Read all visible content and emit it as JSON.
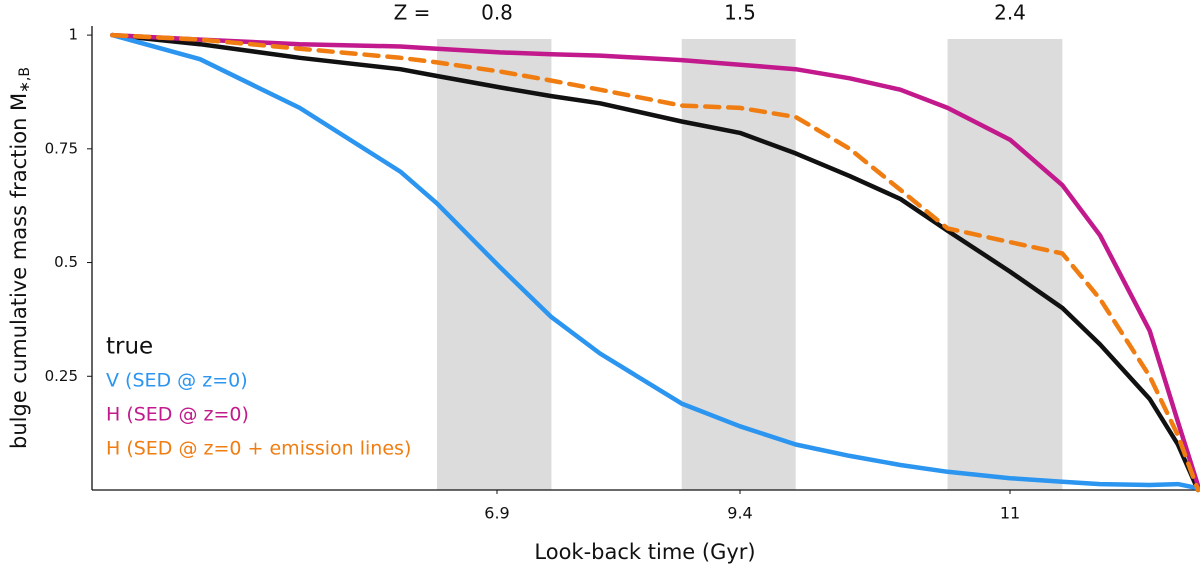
{
  "chart_data": {
    "type": "line",
    "xlabel": "Look-back time (Gyr)",
    "ylabel": "bulge cumulative mass fraction M",
    "ylabel_sub": "∗,B",
    "top_prefix": "Z =",
    "top_labels": [
      "0.8",
      "1.5",
      "2.4"
    ],
    "x": [
      1.77,
      2.94,
      4.27,
      5.61,
      6.1,
      6.93,
      7.46,
      7.96,
      8.8,
      9.4,
      9.73,
      10.05,
      10.35,
      10.63,
      11,
      11.39,
      11.67,
      12.04,
      12.25,
      12.4
    ],
    "series": [
      {
        "name": "true",
        "color": "#111111",
        "dash": false,
        "values": [
          1,
          0.98,
          0.95,
          0.925,
          0.91,
          0.885,
          0.866,
          0.85,
          0.81,
          0.785,
          0.74,
          0.69,
          0.64,
          0.57,
          0.48,
          0.4,
          0.32,
          0.2,
          0.1,
          0.0
        ]
      },
      {
        "name": "V (SED @ z=0)",
        "color": "#2b95f0",
        "dash": false,
        "values": [
          1,
          0.947,
          0.84,
          0.7,
          0.63,
          0.49,
          0.38,
          0.3,
          0.19,
          0.14,
          0.1,
          0.075,
          0.055,
          0.04,
          0.026,
          0.018,
          0.013,
          0.011,
          0.013,
          0.004
        ]
      },
      {
        "name": "H (SED @ z=0)",
        "color": "#c21a8c",
        "dash": false,
        "values": [
          1,
          0.99,
          0.98,
          0.975,
          0.97,
          0.962,
          0.958,
          0.955,
          0.945,
          0.935,
          0.925,
          0.905,
          0.88,
          0.84,
          0.77,
          0.67,
          0.56,
          0.35,
          0.15,
          0.01
        ]
      },
      {
        "name": "H (SED @ z=0 + emission lines)",
        "color": "#f07d12",
        "dash": true,
        "values": [
          1,
          0.99,
          0.97,
          0.95,
          0.94,
          0.92,
          0.9,
          0.88,
          0.845,
          0.84,
          0.82,
          0.75,
          0.66,
          0.575,
          0.545,
          0.52,
          0.42,
          0.25,
          0.12,
          0.0
        ]
      }
    ],
    "bands": [
      [
        6.1,
        7.46
      ],
      [
        8.8,
        9.73
      ],
      [
        10.63,
        11.39
      ]
    ],
    "band_color": "#dcdcdc",
    "xlim": [
      1.5,
      12.4
    ],
    "xticks": [
      6.9,
      9.4,
      11
    ],
    "ylim": [
      0,
      1.02
    ],
    "yticks": [
      1,
      0.75,
      0.5,
      0.25
    ]
  }
}
